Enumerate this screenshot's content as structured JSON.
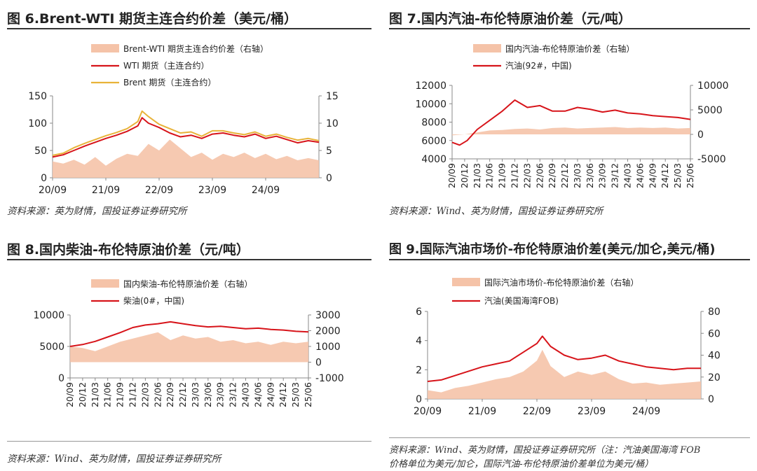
{
  "panels": [
    {
      "title": "图 6.Brent-WTI 期货主连合约价差（美元/桶）",
      "source": "资料来源：英为财情，国投证券证券研究所"
    },
    {
      "title": "图 7.国内汽油-布伦特原油价差（元/吨）",
      "source": "资料来源：Wind、英为财情，国投证券证券研究所"
    },
    {
      "title": "图 8.国内柴油-布伦特原油价差（元/吨）",
      "source": "资料来源：Wind、英为财情，国投证券证券研究所"
    },
    {
      "title": "图 9.国际汽油市场价-布伦特原油价差(美元/加仑,美元/桶)",
      "source_line1": "资料来源：Wind、英为财情，国投证券证券研究所（注：汽油美国海湾 FOB",
      "source_line2": "价格单位为美元/加仑，国际汽油-布伦特原油价差单位为美元/桶）"
    }
  ],
  "chart_data": [
    {
      "type": "line",
      "colors": {
        "spread": "#f5c3a8",
        "wti": "#d7141a",
        "brent": "#e8b339"
      },
      "series": [
        {
          "name": "Brent-WTI 期货主连合约价差（右轴）",
          "kind": "area",
          "axis": "right",
          "points": [
            [
              0,
              3.0
            ],
            [
              5,
              2.6
            ],
            [
              10,
              3.3
            ],
            [
              15,
              2.4
            ],
            [
              20,
              3.8
            ],
            [
              25,
              2.2
            ],
            [
              30,
              3.5
            ],
            [
              35,
              4.4
            ],
            [
              40,
              4.0
            ],
            [
              45,
              6.2
            ],
            [
              50,
              5.0
            ],
            [
              55,
              7.0
            ],
            [
              60,
              5.4
            ],
            [
              65,
              3.8
            ],
            [
              70,
              4.6
            ],
            [
              75,
              3.3
            ],
            [
              80,
              4.4
            ],
            [
              85,
              3.8
            ],
            [
              90,
              4.6
            ],
            [
              95,
              3.6
            ],
            [
              100,
              4.4
            ],
            [
              105,
              3.4
            ],
            [
              110,
              4.0
            ],
            [
              115,
              3.2
            ],
            [
              120,
              3.6
            ],
            [
              125,
              3.2
            ]
          ]
        },
        {
          "name": "WTI 期货（主连合约）",
          "kind": "line",
          "axis": "left",
          "points": [
            [
              0,
              38
            ],
            [
              5,
              42
            ],
            [
              10,
              50
            ],
            [
              15,
              58
            ],
            [
              20,
              65
            ],
            [
              25,
              72
            ],
            [
              30,
              78
            ],
            [
              35,
              85
            ],
            [
              40,
              95
            ],
            [
              42,
              110
            ],
            [
              45,
              100
            ],
            [
              50,
              92
            ],
            [
              55,
              82
            ],
            [
              60,
              75
            ],
            [
              65,
              78
            ],
            [
              70,
              72
            ],
            [
              75,
              80
            ],
            [
              80,
              82
            ],
            [
              85,
              78
            ],
            [
              90,
              75
            ],
            [
              95,
              80
            ],
            [
              100,
              72
            ],
            [
              105,
              76
            ],
            [
              110,
              70
            ],
            [
              115,
              64
            ],
            [
              120,
              68
            ],
            [
              125,
              65
            ]
          ]
        },
        {
          "name": "Brent 期货（主连合约）",
          "kind": "line",
          "axis": "left",
          "points": [
            [
              0,
              41
            ],
            [
              5,
              45
            ],
            [
              10,
              55
            ],
            [
              15,
              63
            ],
            [
              20,
              70
            ],
            [
              25,
              77
            ],
            [
              30,
              83
            ],
            [
              35,
              90
            ],
            [
              40,
              103
            ],
            [
              42,
              122
            ],
            [
              45,
              112
            ],
            [
              50,
              98
            ],
            [
              55,
              90
            ],
            [
              60,
              82
            ],
            [
              65,
              84
            ],
            [
              70,
              76
            ],
            [
              75,
              86
            ],
            [
              80,
              86
            ],
            [
              85,
              82
            ],
            [
              90,
              79
            ],
            [
              95,
              84
            ],
            [
              100,
              76
            ],
            [
              105,
              80
            ],
            [
              110,
              74
            ],
            [
              115,
              69
            ],
            [
              120,
              72
            ],
            [
              125,
              68
            ]
          ]
        }
      ],
      "x_ticks": [
        "20/09",
        "21/09",
        "22/09",
        "23/09",
        "24/09"
      ],
      "y_left": {
        "ticks": [
          0,
          50,
          100,
          150
        ]
      },
      "y_right": {
        "ticks": [
          0,
          5,
          10,
          15
        ]
      }
    },
    {
      "type": "line",
      "colors": {
        "spread": "#f5c3a8",
        "price": "#d7141a"
      },
      "series": [
        {
          "name": "国内汽油-布伦特原油价差（右轴）",
          "kind": "area",
          "axis": "right",
          "points": [
            [
              0,
              -200
            ],
            [
              5,
              0
            ],
            [
              10,
              400
            ],
            [
              15,
              800
            ],
            [
              20,
              900
            ],
            [
              25,
              1100
            ],
            [
              30,
              1200
            ],
            [
              35,
              1000
            ],
            [
              40,
              1300
            ],
            [
              45,
              1400
            ],
            [
              50,
              1200
            ],
            [
              55,
              1300
            ],
            [
              60,
              1400
            ],
            [
              65,
              1500
            ],
            [
              70,
              1300
            ],
            [
              75,
              1400
            ],
            [
              80,
              1300
            ],
            [
              85,
              1400
            ],
            [
              90,
              1200
            ],
            [
              95,
              1300
            ]
          ]
        },
        {
          "name": "汽油(92#，中国)",
          "kind": "line",
          "axis": "left",
          "points": [
            [
              0,
              5800
            ],
            [
              3,
              5500
            ],
            [
              6,
              6000
            ],
            [
              10,
              7200
            ],
            [
              15,
              8200
            ],
            [
              20,
              9200
            ],
            [
              25,
              10400
            ],
            [
              30,
              9600
            ],
            [
              35,
              9800
            ],
            [
              40,
              9200
            ],
            [
              45,
              9200
            ],
            [
              50,
              9600
            ],
            [
              55,
              9400
            ],
            [
              60,
              9100
            ],
            [
              65,
              9300
            ],
            [
              70,
              9000
            ],
            [
              75,
              8900
            ],
            [
              80,
              8700
            ],
            [
              85,
              8600
            ],
            [
              90,
              8500
            ],
            [
              95,
              8300
            ]
          ]
        }
      ],
      "x_ticks": [
        "20/09",
        "20/12",
        "21/03",
        "21/06",
        "21/09",
        "21/12",
        "22/03",
        "22/06",
        "22/09",
        "22/12",
        "23/03",
        "23/06",
        "23/09",
        "23/12",
        "24/03",
        "24/06",
        "24/09",
        "24/12",
        "25/03",
        "25/06"
      ],
      "y_left": {
        "ticks": [
          4000,
          6000,
          8000,
          10000,
          12000
        ]
      },
      "y_right": {
        "ticks": [
          -5000,
          0,
          5000,
          10000
        ]
      }
    },
    {
      "type": "line",
      "colors": {
        "spread": "#f5c3a8",
        "price": "#d7141a"
      },
      "series": [
        {
          "name": "国内柴油-布伦特原油价差（右轴）",
          "kind": "area",
          "axis": "right",
          "points": [
            [
              0,
              1000
            ],
            [
              5,
              900
            ],
            [
              10,
              700
            ],
            [
              15,
              1000
            ],
            [
              20,
              1300
            ],
            [
              25,
              1500
            ],
            [
              30,
              1700
            ],
            [
              35,
              1900
            ],
            [
              40,
              1400
            ],
            [
              45,
              1700
            ],
            [
              50,
              1500
            ],
            [
              55,
              1600
            ],
            [
              60,
              1300
            ],
            [
              65,
              1400
            ],
            [
              70,
              1200
            ],
            [
              75,
              1300
            ],
            [
              80,
              1100
            ],
            [
              85,
              1300
            ],
            [
              90,
              1200
            ],
            [
              95,
              1300
            ]
          ]
        },
        {
          "name": "柴油(0#，中国)",
          "kind": "line",
          "axis": "left",
          "points": [
            [
              0,
              5000
            ],
            [
              5,
              5300
            ],
            [
              10,
              5800
            ],
            [
              15,
              6500
            ],
            [
              20,
              7200
            ],
            [
              25,
              8000
            ],
            [
              30,
              8400
            ],
            [
              35,
              8600
            ],
            [
              40,
              8900
            ],
            [
              45,
              8600
            ],
            [
              50,
              8300
            ],
            [
              55,
              8100
            ],
            [
              60,
              8200
            ],
            [
              65,
              8000
            ],
            [
              70,
              7800
            ],
            [
              75,
              7900
            ],
            [
              80,
              7700
            ],
            [
              85,
              7600
            ],
            [
              90,
              7400
            ],
            [
              95,
              7300
            ]
          ]
        }
      ],
      "x_ticks": [
        "20/09",
        "20/12",
        "21/03",
        "21/06",
        "21/09",
        "21/12",
        "22/03",
        "22/06",
        "22/09",
        "22/12",
        "23/03",
        "23/06",
        "23/09",
        "23/12",
        "24/03",
        "24/06",
        "24/09",
        "24/12",
        "25/03",
        "25/06"
      ],
      "y_left": {
        "ticks": [
          0,
          5000,
          10000
        ]
      },
      "y_right": {
        "ticks": [
          -1000,
          0,
          1000,
          2000,
          3000
        ]
      }
    },
    {
      "type": "line",
      "colors": {
        "spread": "#f5c3a8",
        "price": "#d7141a"
      },
      "series": [
        {
          "name": "国际汽油市场价-布伦特原油价差（右轴）",
          "kind": "area",
          "axis": "right",
          "points": [
            [
              0,
              8
            ],
            [
              5,
              6
            ],
            [
              10,
              10
            ],
            [
              15,
              12
            ],
            [
              20,
              15
            ],
            [
              25,
              18
            ],
            [
              30,
              20
            ],
            [
              35,
              25
            ],
            [
              40,
              35
            ],
            [
              42,
              45
            ],
            [
              45,
              30
            ],
            [
              50,
              20
            ],
            [
              55,
              25
            ],
            [
              60,
              22
            ],
            [
              65,
              25
            ],
            [
              70,
              18
            ],
            [
              75,
              14
            ],
            [
              80,
              15
            ],
            [
              85,
              13
            ],
            [
              90,
              14
            ],
            [
              95,
              15
            ],
            [
              100,
              16
            ]
          ]
        },
        {
          "name": "汽油(美国海湾FOB)",
          "kind": "line",
          "axis": "left",
          "points": [
            [
              0,
              1.2
            ],
            [
              5,
              1.3
            ],
            [
              10,
              1.6
            ],
            [
              15,
              1.9
            ],
            [
              20,
              2.2
            ],
            [
              25,
              2.4
            ],
            [
              30,
              2.6
            ],
            [
              35,
              3.2
            ],
            [
              40,
              3.8
            ],
            [
              42,
              4.3
            ],
            [
              45,
              3.6
            ],
            [
              50,
              3.0
            ],
            [
              55,
              2.7
            ],
            [
              60,
              2.8
            ],
            [
              65,
              3.0
            ],
            [
              70,
              2.6
            ],
            [
              75,
              2.4
            ],
            [
              80,
              2.2
            ],
            [
              85,
              2.1
            ],
            [
              90,
              2.0
            ],
            [
              95,
              2.1
            ],
            [
              100,
              2.1
            ]
          ]
        }
      ],
      "x_ticks": [
        "20/09",
        "21/09",
        "22/09",
        "23/09",
        "24/09"
      ],
      "y_left": {
        "ticks": [
          0,
          2,
          4,
          6
        ]
      },
      "y_right": {
        "ticks": [
          0,
          20,
          40,
          60,
          80
        ]
      }
    }
  ]
}
